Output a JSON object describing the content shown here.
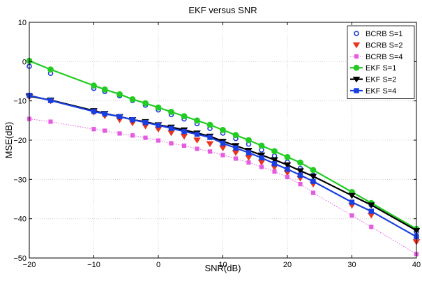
{
  "chart_data": {
    "type": "line",
    "title": "EKF versus SNR",
    "xlabel": "SNR(dB)",
    "ylabel": "MSE(dB)",
    "xlim": [
      -20,
      40
    ],
    "ylim": [
      -50,
      10
    ],
    "xticks": [
      -20,
      -10,
      0,
      10,
      20,
      30,
      40
    ],
    "yticks": [
      -50,
      -40,
      -30,
      -20,
      -10,
      0,
      10
    ],
    "xtick_labels": [
      "−20",
      "−10",
      "0",
      "10",
      "20",
      "30",
      "40"
    ],
    "ytick_labels": [
      "−50",
      "−40",
      "−30",
      "−20",
      "−10",
      "0",
      "10"
    ],
    "grid": true,
    "legend_position": "top-right",
    "x": [
      -20,
      -16.7,
      -10,
      -8.3,
      -6,
      -4,
      -2,
      0,
      2,
      4,
      6,
      8,
      10,
      12,
      14,
      16,
      18,
      20,
      22,
      24,
      30,
      33,
      40
    ],
    "series": [
      {
        "name": "BCRB S=1",
        "color": "#1f3fd8",
        "marker": "circle",
        "line": "none",
        "values": [
          -1.2,
          -3.0,
          -6.8,
          -7.6,
          -8.7,
          -9.9,
          -11.1,
          -12.3,
          -13.5,
          -14.6,
          -15.8,
          -17.0,
          -18.2,
          -19.6,
          -21.0,
          -22.5,
          -24.0,
          -25.6,
          -27.2,
          -28.9,
          -33.6,
          -36.5,
          -43.3
        ]
      },
      {
        "name": "BCRB S=2",
        "color": "#e8351e",
        "marker": "triangle-down",
        "line": "none",
        "values": [
          -9.0,
          -10.0,
          -12.9,
          -13.8,
          -14.8,
          -15.6,
          -16.4,
          -17.2,
          -18.1,
          -19.0,
          -20.0,
          -20.9,
          -22.0,
          -23.2,
          -24.4,
          -25.6,
          -26.9,
          -28.3,
          -29.7,
          -31.2,
          -36.6,
          -39.1,
          -45.9
        ]
      },
      {
        "name": "BCRB S=4",
        "color": "#e65ce0",
        "marker": "square",
        "line": "dotted",
        "values": [
          -14.6,
          -15.3,
          -17.2,
          -17.6,
          -18.3,
          -18.8,
          -19.4,
          -20.1,
          -20.8,
          -21.4,
          -22.2,
          -22.9,
          -23.8,
          -24.7,
          -25.7,
          -26.8,
          -28.0,
          -29.4,
          -31.2,
          -33.4,
          -39.2,
          -42.1,
          -49.0
        ]
      },
      {
        "name": "EKF S=1",
        "color": "#22cc22",
        "marker": "circle-filled",
        "line": "solid",
        "values": [
          0.2,
          -2.0,
          -6.1,
          -7.1,
          -8.3,
          -9.6,
          -10.6,
          -11.7,
          -12.8,
          -13.9,
          -15.0,
          -16.1,
          -17.4,
          -18.7,
          -20.0,
          -21.4,
          -22.8,
          -24.3,
          -25.7,
          -27.6,
          -33.2,
          -36.0,
          -42.6
        ]
      },
      {
        "name": "EKF S=2",
        "color": "#000000",
        "marker": "triangle-down-filled",
        "line": "solid",
        "values": [
          -8.8,
          -9.8,
          -12.5,
          -13.2,
          -14.0,
          -14.8,
          -15.3,
          -16.1,
          -16.7,
          -17.4,
          -18.2,
          -19.0,
          -20.3,
          -21.4,
          -22.6,
          -23.8,
          -25.0,
          -26.3,
          -27.8,
          -29.2,
          -34.1,
          -36.5,
          -43.0
        ]
      },
      {
        "name": "EKF S=4",
        "color": "#1a3fe0",
        "marker": "square-filled",
        "line": "solid",
        "values": [
          -8.6,
          -9.9,
          -12.7,
          -13.3,
          -14.0,
          -14.8,
          -15.5,
          -16.2,
          -17.0,
          -17.8,
          -18.5,
          -19.3,
          -20.8,
          -22.0,
          -23.2,
          -24.5,
          -26.0,
          -27.4,
          -28.9,
          -30.5,
          -35.8,
          -38.1,
          -44.6
        ]
      }
    ]
  }
}
